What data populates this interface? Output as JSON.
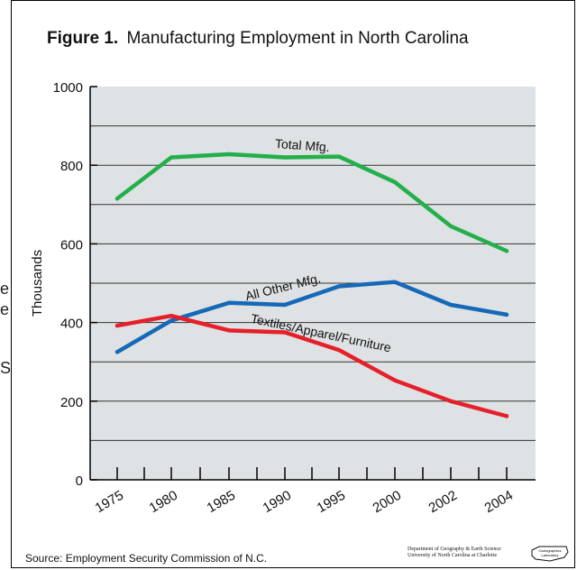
{
  "page": {
    "figure_label": "Figure 1.",
    "title_text": "Manufacturing Employment in North Carolina",
    "source": "Source:  Employment Security Commission of N.C.",
    "credit_line1": "Department of Geography & Earth Science",
    "credit_line2": "University of North Carolina at Charlotte",
    "logo_text_line1": "Cartographics",
    "logo_text_line2": "Laboratory",
    "left_fragments": [
      "e",
      "e",
      "S"
    ]
  },
  "colors": {
    "plot_background": "#dfe2e5",
    "total": "#22b04a",
    "other": "#1569b7",
    "textiles": "#e5202a",
    "gridline": "#333333"
  },
  "chart_data": {
    "type": "line",
    "title": "Figure 1.  Manufacturing Employment in North Carolina",
    "xlabel": "",
    "ylabel": "Thousands",
    "categories": [
      "1975",
      "1980",
      "1985",
      "1990",
      "1995",
      "2000",
      "2002",
      "2004"
    ],
    "ylim": [
      0,
      1000
    ],
    "yticks": [
      0,
      200,
      400,
      600,
      800,
      1000
    ],
    "grid": true,
    "series": [
      {
        "name": "Total Mfg.",
        "color": "#22b04a",
        "values": [
          715,
          820,
          828,
          820,
          822,
          757,
          645,
          582
        ]
      },
      {
        "name": "All Other Mfg.",
        "color": "#1569b7",
        "values": [
          325,
          405,
          450,
          445,
          492,
          503,
          445,
          420
        ]
      },
      {
        "name": "Textiles/Apparel/Furniture",
        "color": "#e5202a",
        "values": [
          392,
          417,
          380,
          375,
          330,
          253,
          200,
          162
        ]
      }
    ]
  }
}
